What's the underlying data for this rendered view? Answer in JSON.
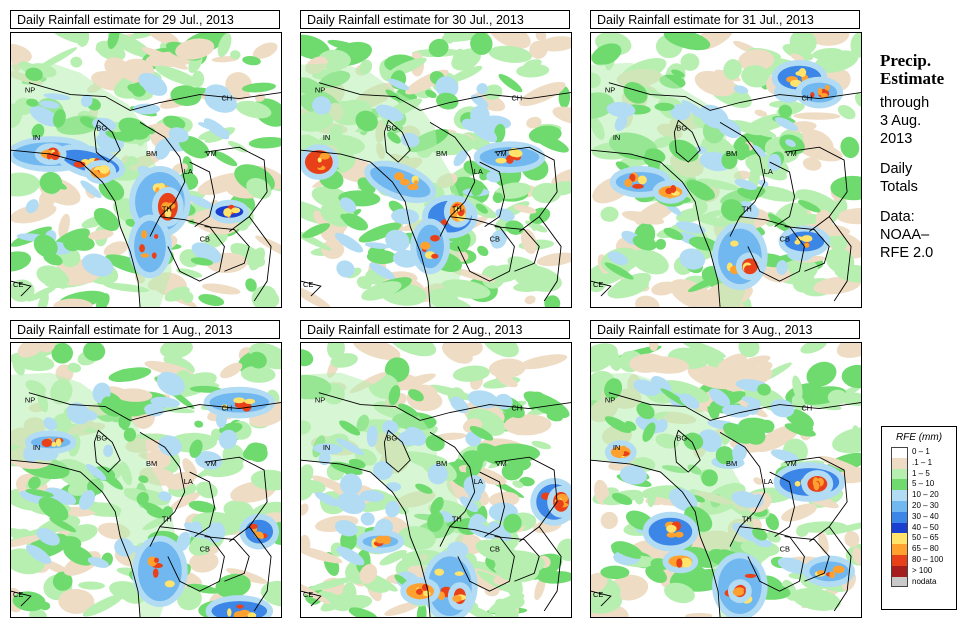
{
  "panels": [
    {
      "title": "Daily Rainfall estimate for  29 Jul., 2013"
    },
    {
      "title": "Daily Rainfall estimate for  30 Jul., 2013"
    },
    {
      "title": "Daily Rainfall estimate for  31 Jul., 2013"
    },
    {
      "title": "Daily Rainfall estimate for  1 Aug., 2013"
    },
    {
      "title": "Daily Rainfall estimate for  2 Aug., 2013"
    },
    {
      "title": "Daily Rainfall estimate for  3 Aug., 2013"
    }
  ],
  "map_labels": {
    "np": "NP",
    "in": "IN",
    "bg": "BG",
    "ch": "CH",
    "bm": "BM",
    "vm": "VM",
    "la": "LA",
    "th": "TH",
    "cb": "CB",
    "ce": "CE"
  },
  "side": {
    "heading1": "Precip.",
    "heading2": "Estimate",
    "through": "through",
    "date1": "3 Aug.",
    "date2": "2013",
    "daily1": "Daily",
    "daily2": "Totals",
    "data1": "Data:",
    "data2": "NOAA–",
    "data3": "RFE 2.0"
  },
  "legend": {
    "title": "RFE (mm)",
    "items": [
      {
        "label": "0 – 1",
        "color": "#ffffff"
      },
      {
        "label": ".1 – 1",
        "color": "#efdcc4"
      },
      {
        "label": "1 – 5",
        "color": "#b6efb0"
      },
      {
        "label": "5 – 10",
        "color": "#6fdb6f"
      },
      {
        "label": "10 – 20",
        "color": "#b2dcf4"
      },
      {
        "label": "20 – 30",
        "color": "#72b8f0"
      },
      {
        "label": "30 – 40",
        "color": "#3b86e6"
      },
      {
        "label": "40 – 50",
        "color": "#1a3fd0"
      },
      {
        "label": "50 – 65",
        "color": "#ffe36a"
      },
      {
        "label": "65 – 80",
        "color": "#ffa12e"
      },
      {
        "label": "80 – 100",
        "color": "#e8411a"
      },
      {
        "label": "> 100",
        "color": "#a51d1d"
      },
      {
        "label": "nodata",
        "color": "#c9c9c9"
      }
    ]
  }
}
